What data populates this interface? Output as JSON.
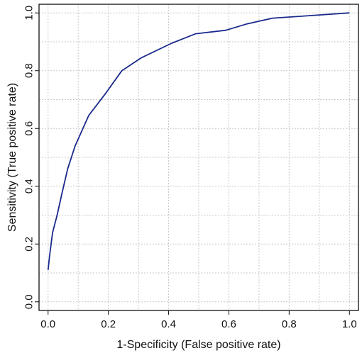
{
  "chart_data": {
    "type": "line",
    "xlabel": "1-Specificity (False positive rate)",
    "ylabel": "Sensitivity (True positive rate)",
    "xlim": [
      -0.03,
      1.03
    ],
    "ylim": [
      -0.03,
      1.03
    ],
    "x_ticks": [
      0.0,
      0.2,
      0.4,
      0.6,
      0.8,
      1.0
    ],
    "x_tick_labels": [
      "0.0",
      "0.2",
      "0.4",
      "0.6",
      "0.8",
      "1.0"
    ],
    "y_ticks": [
      0.0,
      0.2,
      0.4,
      0.6,
      0.8,
      1.0
    ],
    "y_tick_labels": [
      "0.0",
      "0.2",
      "0.4",
      "0.6",
      "0.8",
      "1.0"
    ],
    "grid_x": [
      0.0,
      0.1,
      0.2,
      0.3,
      0.4,
      0.5,
      0.6,
      0.7,
      0.8,
      0.9,
      1.0
    ],
    "grid_y": [
      0.0,
      0.1,
      0.2,
      0.3,
      0.4,
      0.5,
      0.6,
      0.7,
      0.8,
      0.9,
      1.0
    ],
    "grid": true,
    "line_color": "#1a2a8c",
    "series": [
      {
        "x": [
          0.0,
          0.005,
          0.015,
          0.03,
          0.045,
          0.065,
          0.09,
          0.135,
          0.19,
          0.245,
          0.31,
          0.41,
          0.49,
          0.59,
          0.66,
          0.745,
          0.82,
          0.9,
          1.0
        ],
        "y": [
          0.11,
          0.16,
          0.24,
          0.3,
          0.37,
          0.46,
          0.54,
          0.645,
          0.72,
          0.8,
          0.845,
          0.895,
          0.928,
          0.94,
          0.962,
          0.982,
          0.987,
          0.993,
          1.0
        ]
      }
    ]
  }
}
